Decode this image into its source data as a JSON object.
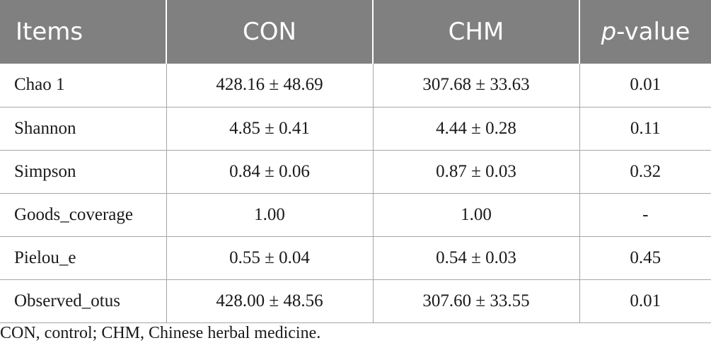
{
  "table": {
    "headers": {
      "items": "Items",
      "con": "CON",
      "chm": "CHM",
      "p_prefix": "p",
      "p_suffix": "-value"
    },
    "rows": [
      {
        "item": "Chao 1",
        "con": "428.16 ± 48.69",
        "chm": "307.68 ± 33.63",
        "p": "0.01"
      },
      {
        "item": "Shannon",
        "con": "4.85 ± 0.41",
        "chm": "4.44 ± 0.28",
        "p": "0.11"
      },
      {
        "item": "Simpson",
        "con": "0.84 ± 0.06",
        "chm": "0.87 ± 0.03",
        "p": "0.32"
      },
      {
        "item": "Goods_coverage",
        "con": "1.00",
        "chm": "1.00",
        "p": "-"
      },
      {
        "item": "Pielou_e",
        "con": "0.55 ± 0.04",
        "chm": "0.54 ± 0.03",
        "p": "0.45"
      },
      {
        "item": "Observed_otus",
        "con": "428.00 ± 48.56",
        "chm": "307.60 ± 33.55",
        "p": "0.01"
      }
    ]
  },
  "footnote": "CON, control; CHM, Chinese herbal medicine.",
  "colors": {
    "header_bg": "#808080",
    "header_text": "#ffffff",
    "grid_line": "#a6a6a6"
  }
}
